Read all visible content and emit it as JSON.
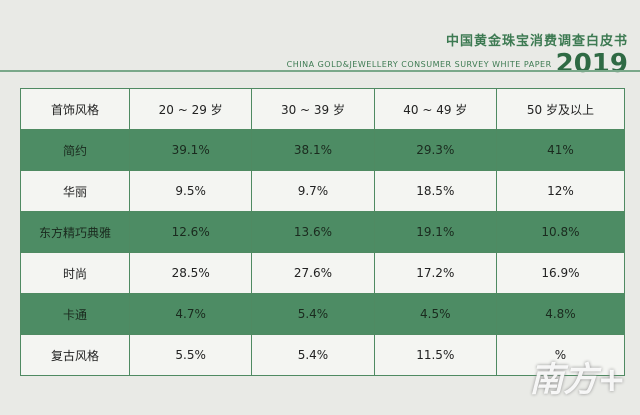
{
  "header": {
    "title": "中国黄金珠宝消费调查白皮书",
    "subtitle": "CHINA GOLD&JEWELLERY CONSUMER SURVEY WHITE PAPER",
    "year": "2019"
  },
  "table": {
    "columns": [
      "首饰风格",
      "20 ~ 29 岁",
      "30 ~ 39 岁",
      "40 ~ 49 岁",
      "50 岁及以上"
    ],
    "rows": [
      [
        "简约",
        "39.1%",
        "38.1%",
        "29.3%",
        "41%"
      ],
      [
        "华丽",
        "9.5%",
        "9.7%",
        "18.5%",
        "12%"
      ],
      [
        "东方精巧典雅",
        "12.6%",
        "13.6%",
        "19.1%",
        "10.8%"
      ],
      [
        "时尚",
        "28.5%",
        "27.6%",
        "17.2%",
        "16.9%"
      ],
      [
        "卡通",
        "4.7%",
        "5.4%",
        "4.5%",
        "4.8%"
      ],
      [
        "复古风格",
        "5.5%",
        "5.4%",
        "11.5%",
        "%"
      ]
    ]
  },
  "watermark": "南方+"
}
